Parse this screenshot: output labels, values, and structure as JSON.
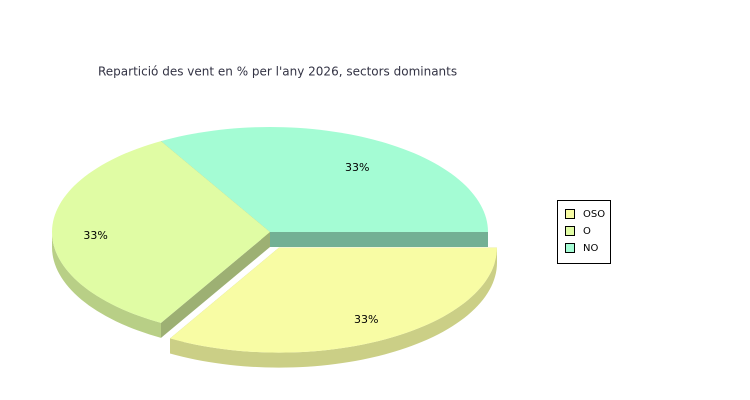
{
  "chart_data": {
    "type": "pie",
    "title": "Repartició des vent en % per l'any 2026, sectors dominants",
    "categories": [
      "OSO",
      "O",
      "NO"
    ],
    "values": [
      33,
      33,
      33
    ],
    "value_labels": [
      "33%",
      "33%",
      "33%"
    ],
    "colors": [
      "#f8fca4",
      "#e0fca4",
      "#a4fcd4"
    ],
    "exploded": [
      true,
      false,
      false
    ],
    "legend": "right"
  }
}
